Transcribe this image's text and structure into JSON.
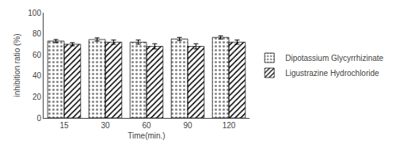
{
  "chart_data": {
    "type": "bar",
    "xlabel": "Time(min.)",
    "ylabel": "inhibition ratio (%)",
    "categories": [
      "15",
      "30",
      "60",
      "90",
      "120"
    ],
    "series": [
      {
        "name": "Dipotassium Glycyrrhizinate",
        "color": "#222222",
        "values": [
          73.0,
          74.5,
          72.0,
          75.0,
          76.5
        ],
        "errors": [
          1.5,
          1.5,
          2.0,
          1.5,
          1.5
        ]
      },
      {
        "name": "Ligustrazine Hydrochloride",
        "color": "#cccccc",
        "values": [
          70.0,
          72.0,
          68.0,
          68.0,
          72.0
        ],
        "errors": [
          1.5,
          2.0,
          2.5,
          2.5,
          2.0
        ]
      }
    ],
    "ylim": [
      0,
      100
    ],
    "yticks": [
      0,
      20,
      40,
      60,
      80,
      100
    ],
    "grid": false,
    "legend": "right"
  }
}
